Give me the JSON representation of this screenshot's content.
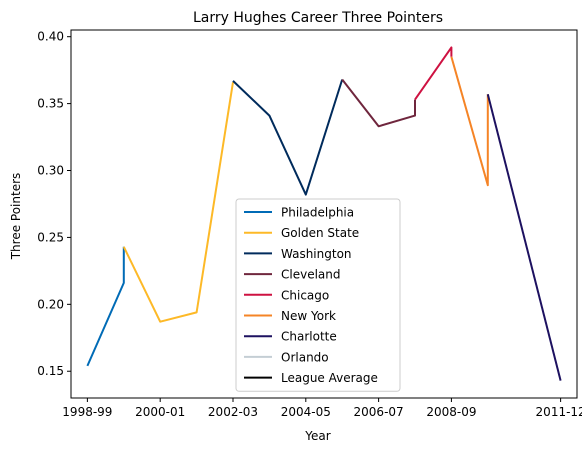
{
  "chart_data": {
    "type": "line",
    "title": "Larry Hughes Career Three Pointers",
    "xlabel": "Year",
    "ylabel": "Three Pointers",
    "x_ticks": [
      "1998-99",
      "2000-01",
      "2002-03",
      "2004-05",
      "2006-07",
      "2008-09",
      "2011-12"
    ],
    "x_range": [
      "1998-99",
      "2011-12"
    ],
    "ylim": [
      0.13,
      0.405
    ],
    "y_ticks": [
      0.15,
      0.2,
      0.25,
      0.3,
      0.35,
      0.4
    ],
    "grid": false,
    "legend_position": "lower-center",
    "series": [
      {
        "name": "Philadelphia",
        "color": "#006bb6",
        "points": [
          {
            "x": "1998-99",
            "y": 0.154
          },
          {
            "x": "1999-00",
            "y": 0.216
          },
          {
            "x": "1999-00",
            "y": 0.243
          }
        ]
      },
      {
        "name": "Golden State",
        "color": "#fdb927",
        "points": [
          {
            "x": "1999-00",
            "y": 0.243
          },
          {
            "x": "2000-01",
            "y": 0.187
          },
          {
            "x": "2001-02",
            "y": 0.194
          },
          {
            "x": "2002-03",
            "y": 0.366
          }
        ]
      },
      {
        "name": "Washington",
        "color": "#002b5c",
        "points": [
          {
            "x": "2002-03",
            "y": 0.367
          },
          {
            "x": "2003-04",
            "y": 0.341
          },
          {
            "x": "2004-05",
            "y": 0.282
          },
          {
            "x": "2005-06",
            "y": 0.368
          }
        ]
      },
      {
        "name": "Cleveland",
        "color": "#6f263d",
        "points": [
          {
            "x": "2005-06",
            "y": 0.368
          },
          {
            "x": "2006-07",
            "y": 0.333
          },
          {
            "x": "2007-08",
            "y": 0.341
          },
          {
            "x": "2007-08",
            "y": 0.353
          }
        ]
      },
      {
        "name": "Chicago",
        "color": "#ce1141",
        "points": [
          {
            "x": "2007-08",
            "y": 0.353
          },
          {
            "x": "2008-09",
            "y": 0.392
          },
          {
            "x": "2008-09",
            "y": 0.385
          }
        ]
      },
      {
        "name": "New York",
        "color": "#f58426",
        "points": [
          {
            "x": "2008-09",
            "y": 0.385
          },
          {
            "x": "2009-10",
            "y": 0.289
          },
          {
            "x": "2009-10",
            "y": 0.357
          }
        ]
      },
      {
        "name": "Charlotte",
        "color": "#1d1160",
        "points": [
          {
            "x": "2009-10",
            "y": 0.357
          },
          {
            "x": "2011-12",
            "y": 0.143
          }
        ]
      },
      {
        "name": "Orlando",
        "color": "#c4ced4",
        "points": []
      },
      {
        "name": "League Average",
        "color": "#000000",
        "points": []
      }
    ]
  }
}
